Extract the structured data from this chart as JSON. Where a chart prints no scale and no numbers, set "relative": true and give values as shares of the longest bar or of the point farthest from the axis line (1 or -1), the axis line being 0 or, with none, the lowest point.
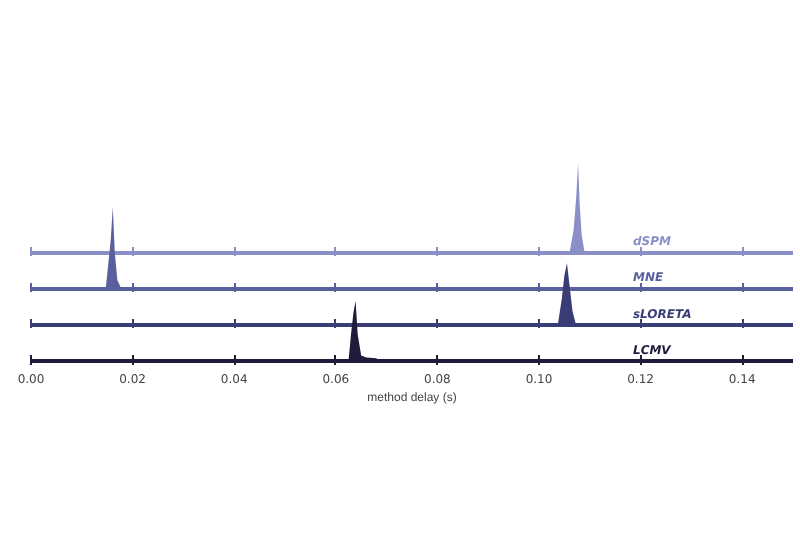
{
  "chart_data": [
    {
      "type": "area",
      "relative": true,
      "tick_labels": false,
      "xlim": [
        0,
        0.15
      ],
      "xticks": [
        0,
        0.02,
        0.04,
        0.06,
        0.08,
        0.1,
        0.12,
        0.14
      ],
      "grid": false,
      "series": [
        {
          "name": "dSPM",
          "color": "#8b8fc8",
          "x": [
            0,
            0.106,
            0.1068,
            0.1073,
            0.1077,
            0.108,
            0.1084,
            0.109,
            0.15
          ],
          "values": [
            0,
            0,
            0.25,
            0.6,
            1,
            0.55,
            0.2,
            0,
            0
          ]
        }
      ]
    },
    {
      "type": "area",
      "relative": true,
      "tick_labels": false,
      "xlim": [
        0,
        0.15
      ],
      "xticks": [
        0,
        0.02,
        0.04,
        0.06,
        0.08,
        0.1,
        0.12,
        0.14
      ],
      "grid": false,
      "series": [
        {
          "name": "MNE",
          "color": "#5a5f9e",
          "x": [
            0,
            0.0147,
            0.0152,
            0.0157,
            0.0161,
            0.0165,
            0.017,
            0.0178,
            0.15
          ],
          "values": [
            0,
            0,
            0.3,
            0.6,
            1,
            0.44,
            0.11,
            0,
            0
          ]
        }
      ]
    },
    {
      "type": "area",
      "relative": true,
      "tick_labels": false,
      "xlim": [
        0,
        0.15
      ],
      "xticks": [
        0,
        0.02,
        0.04,
        0.06,
        0.08,
        0.1,
        0.12,
        0.14
      ],
      "grid": false,
      "series": [
        {
          "name": "sLORETA",
          "color": "#3a3d75",
          "x": [
            0,
            0.1037,
            0.1045,
            0.105,
            0.1055,
            0.106,
            0.1066,
            0.1073,
            0.15
          ],
          "values": [
            0,
            0,
            0.43,
            0.8,
            1,
            0.65,
            0.22,
            0,
            0
          ]
        }
      ]
    },
    {
      "type": "area",
      "relative": true,
      "tick_labels": "x",
      "xlabel": "method delay (s)",
      "xlim": [
        0,
        0.15
      ],
      "xticks": [
        {
          "value": 0,
          "label": "0.00"
        },
        {
          "value": 0.02,
          "label": "0.02"
        },
        {
          "value": 0.04,
          "label": "0.04"
        },
        {
          "value": 0.06,
          "label": "0.06"
        },
        {
          "value": 0.08,
          "label": "0.08"
        },
        {
          "value": 0.1,
          "label": "0.10"
        },
        {
          "value": 0.12,
          "label": "0.12"
        },
        {
          "value": 0.14,
          "label": "0.14"
        }
      ],
      "grid": false,
      "series": [
        {
          "name": "LCMV",
          "color": "#1e1c3a",
          "x": [
            0,
            0.0625,
            0.063,
            0.0635,
            0.0639,
            0.0643,
            0.065,
            0.066,
            0.068,
            0.0685,
            0.15
          ],
          "values": [
            0,
            0,
            0.45,
            0.82,
            1,
            0.45,
            0.09,
            0.06,
            0.045,
            0,
            0
          ]
        }
      ]
    }
  ]
}
